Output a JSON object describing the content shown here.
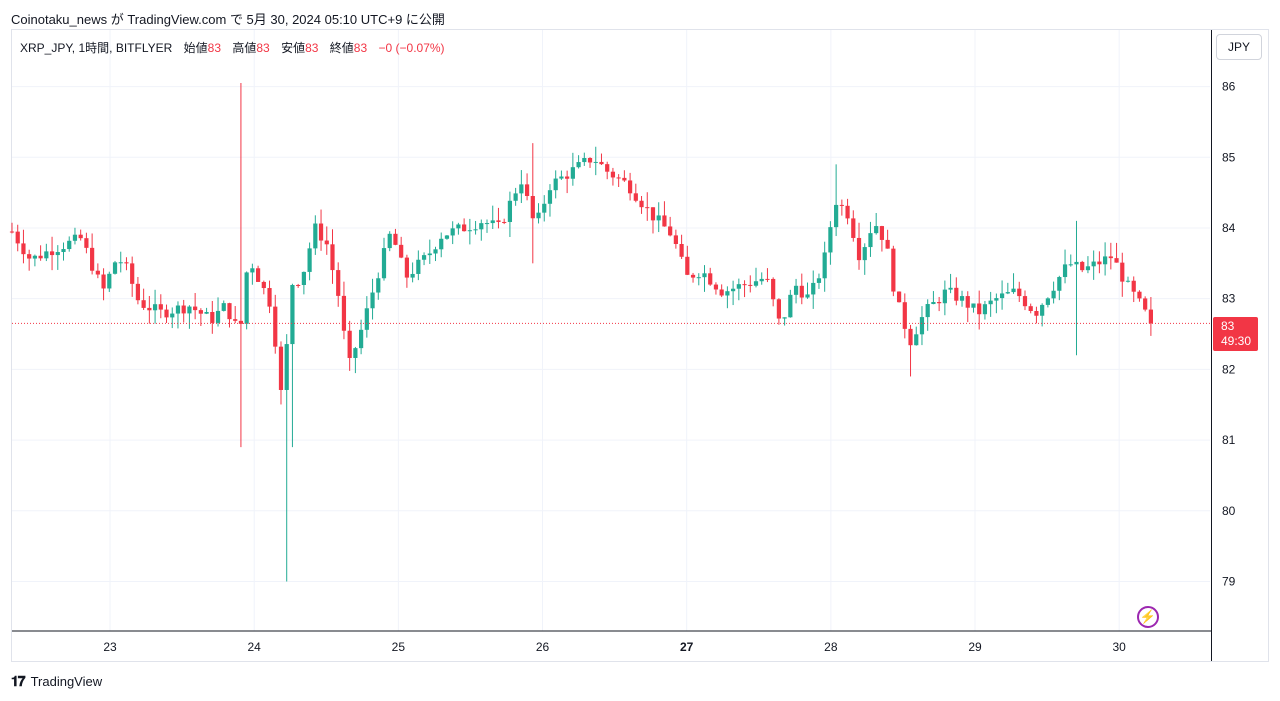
{
  "header": {
    "caption": "Coinotaku_news が TradingView.com で 5月 30, 2024 05:10 UTC+9 に公開"
  },
  "legend": {
    "symbol": "XRP_JPY, 1時間, BITFLYER",
    "open_label": "始値",
    "open_value": "83",
    "high_label": "高値",
    "high_value": "83",
    "low_label": "安値",
    "low_value": "83",
    "close_label": "終値",
    "close_value": "83",
    "change": "−0 (−0.07%)"
  },
  "currency_button": "JPY",
  "price_tag": {
    "price": "83",
    "countdown": "49:30"
  },
  "footer": {
    "brand": "TradingView",
    "logo": "TV-logo-icon"
  },
  "flash_icon": "lightning-icon",
  "colors": {
    "up": "#22ab94",
    "down": "#f23645",
    "grid": "#f0f3fa",
    "text": "#131722",
    "accent": "#9c27b0"
  },
  "chart_data": {
    "type": "candlestick",
    "title": "",
    "xlabel": "",
    "ylabel": "",
    "ylim": [
      78.3,
      86.8
    ],
    "y_ticks": [
      79,
      80,
      81,
      82,
      83,
      84,
      85,
      86
    ],
    "x_ticks": [
      {
        "label": "23",
        "x": 23
      },
      {
        "label": "24",
        "x": 24
      },
      {
        "label": "25",
        "x": 25
      },
      {
        "label": "26",
        "x": 26
      },
      {
        "label": "27",
        "x": 27,
        "bold": true
      },
      {
        "label": "28",
        "x": 28
      },
      {
        "label": "29",
        "x": 29
      },
      {
        "label": "30",
        "x": 30
      }
    ],
    "xlim": [
      22.32,
      30.63
    ],
    "last_price": 82.65,
    "waypoints_close": [
      [
        22.32,
        83.95
      ],
      [
        22.45,
        83.55
      ],
      [
        22.6,
        83.7
      ],
      [
        22.8,
        83.85
      ],
      [
        22.95,
        83.1
      ],
      [
        23.05,
        83.6
      ],
      [
        23.12,
        83.4
      ],
      [
        23.2,
        82.95
      ],
      [
        23.35,
        82.8
      ],
      [
        23.55,
        82.9
      ],
      [
        23.7,
        82.7
      ],
      [
        23.8,
        82.9
      ],
      [
        23.9,
        82.5
      ],
      [
        23.96,
        83.6
      ],
      [
        24.05,
        83.2
      ],
      [
        24.12,
        82.9
      ],
      [
        24.2,
        81.4
      ],
      [
        24.25,
        83.2
      ],
      [
        24.33,
        83.3
      ],
      [
        24.42,
        84.0
      ],
      [
        24.5,
        83.8
      ],
      [
        24.6,
        82.9
      ],
      [
        24.65,
        82.0
      ],
      [
        24.75,
        82.6
      ],
      [
        24.85,
        83.3
      ],
      [
        24.95,
        83.95
      ],
      [
        25.05,
        83.3
      ],
      [
        25.2,
        83.6
      ],
      [
        25.3,
        83.9
      ],
      [
        25.45,
        84.0
      ],
      [
        25.58,
        84.1
      ],
      [
        25.7,
        84.0
      ],
      [
        25.85,
        84.7
      ],
      [
        25.95,
        84.0
      ],
      [
        26.05,
        84.6
      ],
      [
        26.2,
        84.8
      ],
      [
        26.35,
        85.0
      ],
      [
        26.45,
        84.8
      ],
      [
        26.6,
        84.6
      ],
      [
        26.75,
        84.2
      ],
      [
        26.9,
        83.9
      ],
      [
        27.0,
        83.3
      ],
      [
        27.1,
        83.4
      ],
      [
        27.25,
        83.1
      ],
      [
        27.4,
        83.2
      ],
      [
        27.55,
        83.3
      ],
      [
        27.65,
        82.6
      ],
      [
        27.75,
        83.2
      ],
      [
        27.85,
        83.0
      ],
      [
        27.95,
        83.5
      ],
      [
        28.03,
        84.4
      ],
      [
        28.12,
        84.2
      ],
      [
        28.2,
        83.6
      ],
      [
        28.3,
        84.1
      ],
      [
        28.38,
        83.8
      ],
      [
        28.45,
        83.0
      ],
      [
        28.55,
        82.4
      ],
      [
        28.65,
        82.8
      ],
      [
        28.8,
        83.1
      ],
      [
        28.9,
        83.0
      ],
      [
        29.02,
        82.8
      ],
      [
        29.15,
        83.0
      ],
      [
        29.28,
        83.1
      ],
      [
        29.42,
        82.8
      ],
      [
        29.55,
        83.2
      ],
      [
        29.65,
        83.5
      ],
      [
        29.75,
        83.4
      ],
      [
        29.85,
        83.5
      ],
      [
        29.95,
        83.6
      ],
      [
        30.05,
        83.2
      ],
      [
        30.15,
        82.9
      ],
      [
        30.22,
        82.65
      ]
    ],
    "candle_count": 200,
    "series": [
      {
        "name": "XRP_JPY",
        "kind": "ohlc"
      }
    ]
  }
}
